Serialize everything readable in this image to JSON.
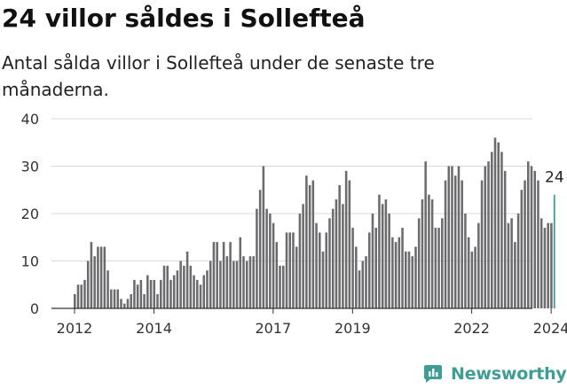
{
  "header": {
    "title": "24 villor såldes i Sollefteå",
    "subtitle": "Antal sålda villor i Sollefteå under de senaste tre månaderna."
  },
  "brand": {
    "name": "Newsworthy",
    "icon": "newsworthy-logo-icon",
    "color": "#3e9e95"
  },
  "colors": {
    "bar": "#6c6c6e",
    "highlight": "#3e9e95",
    "grid": "#d9d9d9",
    "axis": "#333333"
  },
  "chart_data": {
    "type": "bar",
    "title": "",
    "xlabel": "",
    "ylabel": "",
    "ylim": [
      0,
      40
    ],
    "yticks": [
      "0",
      "10",
      "20",
      "30",
      "40"
    ],
    "xticks": [
      "2012",
      "2014",
      "2017",
      "2019",
      "2022",
      "2024"
    ],
    "grid": true,
    "legend": "none",
    "start_period": "2012-01",
    "period": "quarter-rolling monthly",
    "values": [
      3,
      5,
      5,
      6,
      10,
      14,
      11,
      13,
      13,
      13,
      8,
      4,
      4,
      4,
      2,
      1,
      2,
      3,
      6,
      5,
      6,
      3,
      7,
      6,
      6,
      3,
      6,
      9,
      9,
      6,
      7,
      8,
      10,
      9,
      12,
      9,
      7,
      6,
      5,
      7,
      8,
      10,
      14,
      14,
      10,
      14,
      11,
      14,
      10,
      10,
      15,
      11,
      10,
      11,
      11,
      21,
      25,
      30,
      21,
      20,
      18,
      14,
      9,
      9,
      16,
      16,
      16,
      13,
      20,
      22,
      28,
      26,
      27,
      18,
      16,
      12,
      16,
      19,
      21,
      23,
      26,
      22,
      29,
      27,
      17,
      13,
      8,
      10,
      11,
      16,
      20,
      17,
      24,
      22,
      23,
      20,
      15,
      14,
      15,
      17,
      12,
      12,
      11,
      13,
      19,
      23,
      31,
      24,
      23,
      17,
      17,
      19,
      27,
      30,
      30,
      28,
      30,
      27,
      20,
      15,
      12,
      13,
      18,
      27,
      30,
      31,
      33,
      36,
      35,
      33,
      29,
      18,
      19,
      14,
      20,
      25,
      27,
      31,
      30,
      29,
      27,
      19,
      17,
      18,
      18,
      24
    ],
    "highlight_last": true,
    "annotations": [
      {
        "label": "24",
        "target": "last"
      }
    ]
  }
}
